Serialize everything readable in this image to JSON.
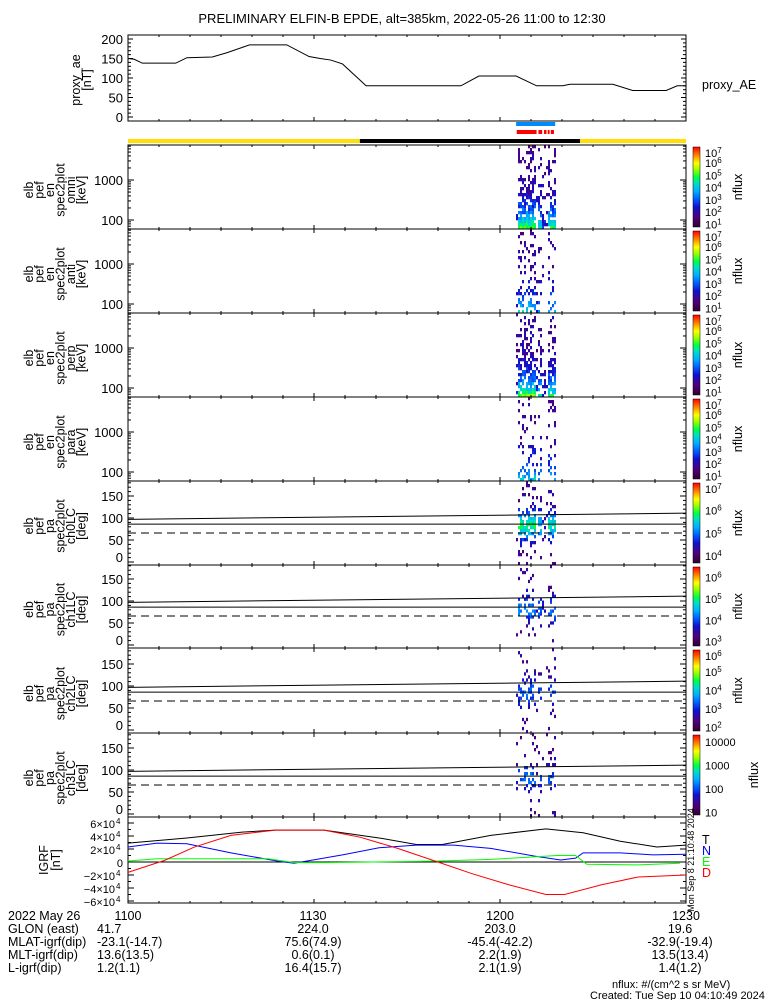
{
  "title": "PRELIMINARY ELFIN-B EPDE, alt=385km, 2022-05-26 11:00 to 12:30",
  "time_range": {
    "start": "11:00",
    "end": "12:30",
    "minutes": 90
  },
  "chart_data": [
    {
      "type": "line",
      "id": "proxy_ae",
      "ylabel_lines": [
        "proxy_ae",
        "[nT]"
      ],
      "legend": "proxy_AE",
      "ylim": [
        0,
        210
      ],
      "yticks": [
        "0",
        "50",
        "100",
        "150",
        "200"
      ],
      "ytick_values": [
        0,
        50,
        100,
        150,
        200
      ],
      "x_minutes": [
        0,
        1,
        2.3,
        7.7,
        9.5,
        13.6,
        16,
        19.6,
        25.6,
        29.2,
        31,
        32.7,
        34.6,
        38.4,
        53.7,
        56.6,
        62.6,
        65.9,
        70.1,
        71.3,
        78.2,
        81.4,
        86.8,
        88.6,
        90
      ],
      "values": [
        150,
        148,
        138,
        138,
        152,
        154,
        165,
        185,
        185,
        155,
        150,
        146,
        136,
        80,
        80,
        105,
        105,
        80,
        80,
        84,
        84,
        68,
        68,
        80,
        80
      ]
    },
    {
      "type": "heatmap",
      "id": "spec_omni",
      "ylabel_lines": [
        "elb",
        "pef",
        "en",
        "spec2plot",
        "omni",
        "[keV]"
      ],
      "yscale": "log",
      "ylim": [
        60,
        7500
      ],
      "yticks": [
        "100",
        "1000"
      ],
      "ytick_values": [
        100,
        1000
      ],
      "colorbar": {
        "label": "nflux",
        "log_range": [
          0.8,
          7.3
        ],
        "tick_exponents": [
          7,
          6,
          5,
          4,
          3,
          2,
          1
        ]
      },
      "active_interval_minutes": [
        62.6,
        69
      ],
      "density": 1.0
    },
    {
      "type": "heatmap",
      "id": "spec_anti",
      "ylabel_lines": [
        "elb",
        "pef",
        "en",
        "spec2plot",
        "anti",
        "[keV]"
      ],
      "yscale": "log",
      "ylim": [
        60,
        7500
      ],
      "yticks": [
        "100",
        "1000"
      ],
      "ytick_values": [
        100,
        1000
      ],
      "colorbar": {
        "label": "nflux",
        "log_range": [
          0.8,
          7.3
        ],
        "tick_exponents": [
          7,
          6,
          5,
          4,
          3,
          2,
          1
        ]
      },
      "active_interval_minutes": [
        62.6,
        69
      ],
      "density": 0.45
    },
    {
      "type": "heatmap",
      "id": "spec_perp",
      "ylabel_lines": [
        "elb",
        "pef",
        "en",
        "spec2plot",
        "perp",
        "[keV]"
      ],
      "yscale": "log",
      "ylim": [
        60,
        7500
      ],
      "yticks": [
        "100",
        "1000"
      ],
      "ytick_values": [
        100,
        1000
      ],
      "colorbar": {
        "label": "nflux",
        "log_range": [
          0.8,
          7.3
        ],
        "tick_exponents": [
          7,
          6,
          5,
          4,
          3,
          2,
          1
        ]
      },
      "active_interval_minutes": [
        62.6,
        69
      ],
      "density": 1.0
    },
    {
      "type": "heatmap",
      "id": "spec_para",
      "ylabel_lines": [
        "elb",
        "pef",
        "en",
        "spec2plot",
        "para",
        "[keV]"
      ],
      "yscale": "log",
      "ylim": [
        60,
        7500
      ],
      "yticks": [
        "100",
        "1000"
      ],
      "ytick_values": [
        100,
        1000
      ],
      "colorbar": {
        "label": "nflux",
        "log_range": [
          0.8,
          7.3
        ],
        "tick_exponents": [
          7,
          6,
          5,
          4,
          3,
          2,
          1
        ]
      },
      "active_interval_minutes": [
        62.6,
        69
      ],
      "density": 0.4
    },
    {
      "type": "heatmap",
      "id": "pa_ch0LC",
      "ylabel_lines": [
        "elb",
        "pef",
        "pa",
        "spec2plot",
        "ch0LC",
        "[deg]"
      ],
      "ylim": [
        0,
        180
      ],
      "yticks": [
        "0",
        "50",
        "100",
        "150"
      ],
      "ytick_values": [
        0,
        50,
        100,
        150
      ],
      "colorbar": {
        "label": "nflux",
        "log_range": [
          3.7,
          7.2
        ],
        "tick_exponents": [
          7,
          6,
          5,
          4
        ]
      },
      "lines": {
        "upper_deg": [
          97,
          111
        ],
        "lower_deg": 86,
        "dashed_deg": 66
      },
      "density": 1.0
    },
    {
      "type": "heatmap",
      "id": "pa_ch1LC",
      "ylabel_lines": [
        "elb",
        "pef",
        "pa",
        "spec2plot",
        "ch1LC",
        "[deg]"
      ],
      "ylim": [
        0,
        180
      ],
      "yticks": [
        "0",
        "50",
        "100",
        "150"
      ],
      "ytick_values": [
        0,
        50,
        100,
        150
      ],
      "colorbar": {
        "label": "nflux",
        "log_range": [
          2.8,
          6.5
        ],
        "tick_exponents": [
          6,
          5,
          4,
          3
        ]
      },
      "lines": {
        "upper_deg": [
          97,
          111
        ],
        "lower_deg": 86,
        "dashed_deg": 66
      },
      "density": 0.55
    },
    {
      "type": "heatmap",
      "id": "pa_ch2LC",
      "ylabel_lines": [
        "elb",
        "pef",
        "pa",
        "spec2plot",
        "ch2LC",
        "[deg]"
      ],
      "ylim": [
        0,
        180
      ],
      "yticks": [
        "0",
        "50",
        "100",
        "150"
      ],
      "ytick_values": [
        0,
        50,
        100,
        150
      ],
      "colorbar": {
        "label": "nflux",
        "log_range": [
          1.8,
          6.2
        ],
        "tick_exponents": [
          6,
          5,
          4,
          3,
          2
        ]
      },
      "lines": {
        "upper_deg": [
          97,
          111
        ],
        "lower_deg": 86,
        "dashed_deg": 66
      },
      "density": 0.45
    },
    {
      "type": "heatmap",
      "id": "pa_ch3LC",
      "ylabel_lines": [
        "elb",
        "pef",
        "pa",
        "spec2plot",
        "ch3LC",
        "[deg]"
      ],
      "ylim": [
        0,
        180
      ],
      "yticks": [
        "0",
        "50",
        "100",
        "150"
      ],
      "ytick_values": [
        0,
        50,
        100,
        150
      ],
      "colorbar": {
        "label": "nflux",
        "log_range": [
          0.9,
          4.3
        ],
        "tick_labels": [
          "10000",
          "1000",
          "100",
          "10"
        ],
        "tick_exponents": [
          4,
          3,
          2,
          1
        ]
      },
      "lines": {
        "upper_deg": [
          97,
          111
        ],
        "lower_deg": 86,
        "dashed_deg": 66
      },
      "density": 0.45
    },
    {
      "type": "line",
      "id": "igrf",
      "ylabel_lines": [
        "IGRF",
        "[nT]"
      ],
      "ylim": [
        -62000,
        62000
      ],
      "ytick_values": [
        -60000,
        -40000,
        -20000,
        0,
        20000,
        40000,
        60000
      ],
      "yticks": [
        "−6×10",
        "−4×10",
        "−2×10",
        "0",
        "2×10",
        "4×10",
        "6×10"
      ],
      "ytick_exp": "4",
      "side_note": "Mon Sep  8 21:10:48 2024",
      "series": [
        {
          "name": "T",
          "color": "#000000",
          "x_minutes": [
            0,
            9.5,
            18.4,
            23.8,
            31.6,
            40.5,
            46.5,
            50.7,
            58.5,
            67.4,
            73.4,
            79.4,
            85.3,
            90
          ],
          "values": [
            29000,
            37000,
            46000,
            49000,
            49000,
            37000,
            27000,
            27000,
            41000,
            51000,
            45000,
            32000,
            23000,
            26000
          ]
        },
        {
          "name": "N",
          "color": "#0000ff",
          "x_minutes": [
            0,
            4.7,
            9.5,
            16.6,
            24.4,
            26.8,
            34.6,
            40.5,
            46.5,
            52.5,
            58.5,
            65.6,
            69.8,
            72.2,
            73.4,
            79.4,
            84.7,
            90
          ],
          "values": [
            23000,
            29000,
            28000,
            14000,
            1000,
            -2000,
            11000,
            22000,
            26000,
            26000,
            21000,
            9000,
            3000,
            6000,
            14000,
            14000,
            11000,
            12000
          ]
        },
        {
          "name": "E",
          "color": "#00ff00",
          "x_minutes": [
            0,
            4.7,
            22.6,
            26.8,
            32.2,
            50.1,
            58.5,
            69.2,
            72.2,
            74,
            82.3,
            89
          ],
          "values": [
            1500,
            5000,
            5000,
            -1000,
            -1000,
            1500,
            4000,
            10000,
            10000,
            -3500,
            -4500,
            -2000
          ]
        },
        {
          "name": "D",
          "color": "#ff0000",
          "x_minutes": [
            0,
            5.9,
            10.7,
            16.6,
            23.8,
            31.6,
            37.5,
            43.5,
            49.5,
            55.5,
            61.4,
            67.4,
            70.4,
            76.4,
            82.3,
            90
          ],
          "values": [
            -16000,
            2500,
            23000,
            41000,
            49000,
            49000,
            38000,
            21000,
            1500,
            -18000,
            -35000,
            -50000,
            -50000,
            -35000,
            -23000,
            -20000
          ]
        }
      ]
    }
  ],
  "indicator_bars": {
    "blue_minutes": [
      62.6,
      68.9
    ],
    "red_segments_minutes": [
      [
        62.7,
        65.9
      ],
      [
        66.2,
        66.8
      ],
      [
        67.1,
        67.5
      ],
      [
        67.7,
        68.0
      ],
      [
        68.2,
        68.7
      ]
    ],
    "day_night": [
      {
        "color": "#ffe000",
        "from": 0,
        "to": 37.4
      },
      {
        "color": "#000000",
        "from": 37.4,
        "to": 72.9
      },
      {
        "color": "#ffe000",
        "from": 72.9,
        "to": 90
      }
    ],
    "colors": {
      "blue": "#0088ff",
      "red": "#ff0000"
    }
  },
  "footer": {
    "date_label": "2022 May 26",
    "times": [
      "1100",
      "1130",
      "1200",
      "1230"
    ],
    "rows": [
      {
        "label": "GLON (east)",
        "values": [
          "41.7",
          "224.0",
          "203.0",
          "19.6"
        ]
      },
      {
        "label": "MLAT-igrf(dip)",
        "values": [
          "-23.1(-14.7)",
          "75.6(74.9)",
          "-45.4(-42.2)",
          "-32.9(-19.4)"
        ]
      },
      {
        "label": "MLT-igrf(dip)",
        "values": [
          "13.6(13.5)",
          "0.6(0.1)",
          "2.2(1.9)",
          "13.5(13.4)"
        ]
      },
      {
        "label": "L-igrf(dip)",
        "values": [
          "1.2(1.1)",
          "16.4(15.7)",
          "2.1(1.9)",
          "1.4(1.2)"
        ]
      }
    ],
    "units_note": "nflux: #/(cm^2 s sr MeV)",
    "created": "Created: Tue Sep 10 04:10:49 2024"
  }
}
